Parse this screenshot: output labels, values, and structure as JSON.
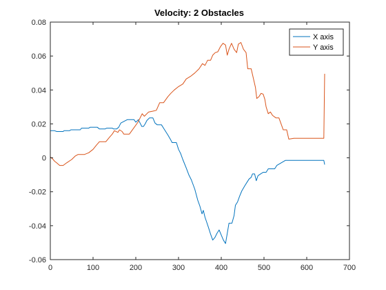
{
  "chart_data": {
    "type": "line",
    "title": "Velocity: 2 Obstacles",
    "xlim": [
      0,
      700
    ],
    "ylim": [
      -0.06,
      0.08
    ],
    "xticks": [
      0,
      100,
      200,
      300,
      400,
      500,
      600,
      700
    ],
    "yticks": [
      -0.06,
      -0.04,
      -0.02,
      0,
      0.02,
      0.04,
      0.06,
      0.08
    ],
    "ytick_labels": [
      "-0.06",
      "-0.04",
      "-0.02",
      "0",
      "0.02",
      "0.04",
      "0.06",
      "0.08"
    ],
    "xtick_labels": [
      "0",
      "100",
      "200",
      "300",
      "400",
      "500",
      "600",
      "700"
    ],
    "grid": false,
    "legend_position": "top-right",
    "series": [
      {
        "name": "X axis",
        "color": "#0072BD",
        "points": [
          [
            0,
            0.016
          ],
          [
            10,
            0.016
          ],
          [
            15,
            0.0155
          ],
          [
            30,
            0.0155
          ],
          [
            32,
            0.016
          ],
          [
            45,
            0.016
          ],
          [
            48,
            0.0165
          ],
          [
            70,
            0.0165
          ],
          [
            73,
            0.0175
          ],
          [
            90,
            0.0175
          ],
          [
            93,
            0.018
          ],
          [
            110,
            0.018
          ],
          [
            115,
            0.017
          ],
          [
            128,
            0.017
          ],
          [
            132,
            0.0175
          ],
          [
            145,
            0.0175
          ],
          [
            148,
            0.017
          ],
          [
            155,
            0.017
          ],
          [
            160,
            0.018
          ],
          [
            165,
            0.0205
          ],
          [
            180,
            0.0225
          ],
          [
            196,
            0.0225
          ],
          [
            200,
            0.021
          ],
          [
            206,
            0.0225
          ],
          [
            210,
            0.0205
          ],
          [
            214,
            0.0185
          ],
          [
            218,
            0.0185
          ],
          [
            222,
            0.02
          ],
          [
            226,
            0.022
          ],
          [
            232,
            0.0235
          ],
          [
            240,
            0.0235
          ],
          [
            245,
            0.0205
          ],
          [
            250,
            0.0195
          ],
          [
            260,
            0.0195
          ],
          [
            265,
            0.0175
          ],
          [
            275,
            0.0135
          ],
          [
            282,
            0.0105
          ],
          [
            285,
            0.009
          ],
          [
            295,
            0.009
          ],
          [
            300,
            0.005
          ],
          [
            305,
            0.0025
          ],
          [
            310,
            -0.001
          ],
          [
            318,
            -0.006
          ],
          [
            324,
            -0.01
          ],
          [
            330,
            -0.013
          ],
          [
            338,
            -0.0185
          ],
          [
            345,
            -0.025
          ],
          [
            350,
            -0.0285
          ],
          [
            355,
            -0.033
          ],
          [
            358,
            -0.031
          ],
          [
            362,
            -0.035
          ],
          [
            366,
            -0.038
          ],
          [
            370,
            -0.041
          ],
          [
            375,
            -0.045
          ],
          [
            380,
            -0.0485
          ],
          [
            385,
            -0.047
          ],
          [
            390,
            -0.0445
          ],
          [
            395,
            -0.0425
          ],
          [
            400,
            -0.0455
          ],
          [
            405,
            -0.0485
          ],
          [
            410,
            -0.0505
          ],
          [
            413,
            -0.046
          ],
          [
            418,
            -0.0385
          ],
          [
            425,
            -0.0385
          ],
          [
            430,
            -0.034
          ],
          [
            433,
            -0.028
          ],
          [
            438,
            -0.026
          ],
          [
            443,
            -0.0225
          ],
          [
            448,
            -0.0195
          ],
          [
            455,
            -0.0165
          ],
          [
            460,
            -0.0145
          ],
          [
            465,
            -0.0125
          ],
          [
            470,
            -0.0115
          ],
          [
            473,
            -0.0095
          ],
          [
            478,
            -0.0095
          ],
          [
            482,
            -0.0135
          ],
          [
            486,
            -0.0105
          ],
          [
            492,
            -0.0095
          ],
          [
            498,
            -0.0085
          ],
          [
            505,
            -0.0085
          ],
          [
            510,
            -0.0065
          ],
          [
            525,
            -0.0065
          ],
          [
            530,
            -0.0045
          ],
          [
            540,
            -0.003
          ],
          [
            550,
            -0.0015
          ],
          [
            580,
            -0.0015
          ],
          [
            610,
            -0.0015
          ],
          [
            640,
            -0.0015
          ],
          [
            642,
            -0.004
          ]
        ]
      },
      {
        "name": "Y axis",
        "color": "#D95319",
        "points": [
          [
            0,
            0.0005
          ],
          [
            5,
            -0.0005
          ],
          [
            10,
            -0.002
          ],
          [
            15,
            -0.003
          ],
          [
            22,
            -0.0045
          ],
          [
            30,
            -0.0045
          ],
          [
            38,
            -0.003
          ],
          [
            50,
            -0.001
          ],
          [
            58,
            0.001
          ],
          [
            65,
            0.002
          ],
          [
            80,
            0.002
          ],
          [
            90,
            0.003
          ],
          [
            100,
            0.005
          ],
          [
            108,
            0.0075
          ],
          [
            115,
            0.0095
          ],
          [
            130,
            0.0095
          ],
          [
            138,
            0.012
          ],
          [
            145,
            0.014
          ],
          [
            150,
            0.016
          ],
          [
            158,
            0.015
          ],
          [
            162,
            0.0165
          ],
          [
            168,
            0.0155
          ],
          [
            172,
            0.014
          ],
          [
            185,
            0.014
          ],
          [
            195,
            0.0175
          ],
          [
            205,
            0.021
          ],
          [
            215,
            0.026
          ],
          [
            220,
            0.0245
          ],
          [
            230,
            0.027
          ],
          [
            240,
            0.0275
          ],
          [
            248,
            0.028
          ],
          [
            256,
            0.0325
          ],
          [
            265,
            0.0325
          ],
          [
            275,
            0.036
          ],
          [
            282,
            0.038
          ],
          [
            290,
            0.04
          ],
          [
            300,
            0.042
          ],
          [
            310,
            0.0435
          ],
          [
            318,
            0.0465
          ],
          [
            328,
            0.048
          ],
          [
            338,
            0.05
          ],
          [
            348,
            0.0525
          ],
          [
            356,
            0.0555
          ],
          [
            362,
            0.0545
          ],
          [
            368,
            0.0575
          ],
          [
            375,
            0.0575
          ],
          [
            380,
            0.0605
          ],
          [
            386,
            0.062
          ],
          [
            392,
            0.0625
          ],
          [
            398,
            0.0655
          ],
          [
            404,
            0.0675
          ],
          [
            410,
            0.0665
          ],
          [
            414,
            0.0605
          ],
          [
            418,
            0.064
          ],
          [
            424,
            0.0675
          ],
          [
            430,
            0.064
          ],
          [
            436,
            0.062
          ],
          [
            440,
            0.067
          ],
          [
            446,
            0.068
          ],
          [
            452,
            0.064
          ],
          [
            458,
            0.062
          ],
          [
            462,
            0.0525
          ],
          [
            470,
            0.0525
          ],
          [
            475,
            0.047
          ],
          [
            480,
            0.0415
          ],
          [
            483,
            0.035
          ],
          [
            488,
            0.036
          ],
          [
            493,
            0.038
          ],
          [
            498,
            0.0375
          ],
          [
            502,
            0.0345
          ],
          [
            505,
            0.03
          ],
          [
            510,
            0.026
          ],
          [
            515,
            0.027
          ],
          [
            520,
            0.025
          ],
          [
            528,
            0.0235
          ],
          [
            535,
            0.0235
          ],
          [
            540,
            0.02
          ],
          [
            545,
            0.0165
          ],
          [
            553,
            0.0165
          ],
          [
            558,
            0.011
          ],
          [
            570,
            0.0115
          ],
          [
            600,
            0.0115
          ],
          [
            640,
            0.0115
          ],
          [
            642,
            0.0495
          ]
        ]
      }
    ]
  }
}
